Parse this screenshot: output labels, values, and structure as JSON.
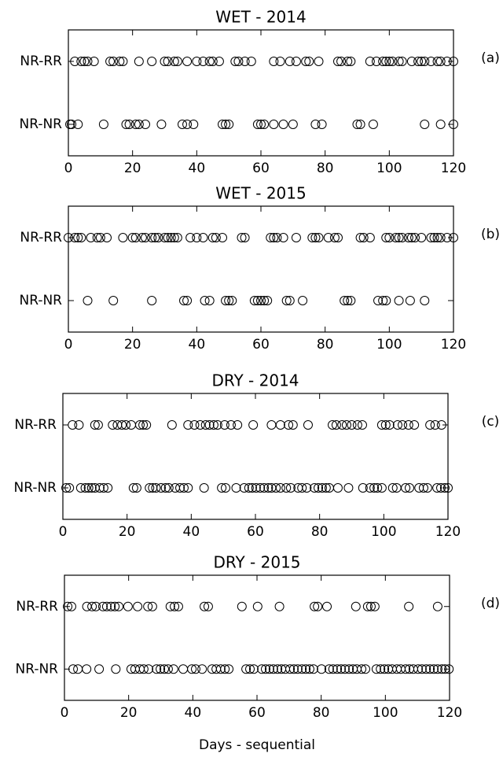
{
  "chart_data": [
    {
      "type": "strip",
      "title": "WET - 2014",
      "panel_label": "(a)",
      "xlim": [
        0,
        120
      ],
      "xticks": [
        0,
        20,
        40,
        60,
        80,
        100,
        120
      ],
      "series": [
        {
          "name": "NR-RR",
          "color": "#000000",
          "values": [
            2,
            4,
            5,
            6,
            8,
            13,
            14,
            16,
            17,
            22,
            26,
            30,
            31,
            33,
            34,
            37,
            40,
            42,
            44,
            45,
            47,
            52,
            53,
            55,
            57,
            64,
            66,
            69,
            71,
            74,
            75,
            78,
            84,
            85,
            87,
            88,
            94,
            96,
            98,
            99,
            100,
            101,
            103,
            104,
            107,
            109,
            110,
            111,
            113,
            115,
            116,
            118,
            120
          ]
        },
        {
          "name": "NR-NR",
          "color": "#000000",
          "values": [
            0.5,
            1,
            3,
            11,
            18,
            19,
            21,
            22,
            24,
            29,
            35.5,
            37,
            39,
            48,
            49,
            50,
            59,
            60,
            61,
            64,
            67,
            70,
            77,
            79,
            90,
            91,
            95,
            111,
            116,
            120
          ]
        }
      ]
    },
    {
      "type": "strip",
      "title": "WET - 2015",
      "panel_label": "(b)",
      "xlim": [
        0,
        120
      ],
      "xticks": [
        0,
        20,
        40,
        60,
        80,
        100,
        120
      ],
      "series": [
        {
          "name": "NR-RR",
          "color": "#000000",
          "values": [
            0,
            2,
            3,
            4,
            7,
            9,
            10,
            12,
            17,
            20,
            21,
            23,
            24,
            26,
            27,
            28,
            30,
            31,
            32,
            33,
            34,
            38,
            40,
            42,
            45,
            46,
            48,
            54,
            55,
            63,
            64,
            65,
            67,
            71,
            76,
            77,
            78,
            81,
            83,
            84,
            91,
            92,
            94,
            99,
            100,
            102,
            103,
            104,
            106,
            107,
            108,
            110,
            113,
            114,
            115,
            116,
            118,
            120
          ]
        },
        {
          "name": "NR-NR",
          "color": "#000000",
          "values": [
            6,
            14,
            26,
            36,
            37,
            42.5,
            44,
            49,
            50,
            51,
            58,
            59,
            60,
            61,
            62,
            68,
            69,
            73,
            86,
            87,
            88,
            96.5,
            98,
            99,
            103,
            106.5,
            111
          ]
        }
      ]
    },
    {
      "type": "strip",
      "title": "DRY - 2014",
      "panel_label": "(c)",
      "xlim": [
        0,
        120
      ],
      "xticks": [
        0,
        20,
        40,
        60,
        80,
        100,
        120
      ],
      "series": [
        {
          "name": "NR-RR",
          "color": "#000000",
          "values": [
            3,
            5,
            10,
            11,
            15.5,
            17,
            18.4,
            19.6,
            21.3,
            24,
            25,
            26,
            34,
            39,
            41,
            42.8,
            44.5,
            45.7,
            47,
            48.2,
            50.4,
            52.4,
            54.4,
            59.3,
            65,
            67.8,
            70.3,
            71.7,
            76.4,
            84,
            85.2,
            87,
            88.4,
            90,
            91.8,
            93.3,
            99.4,
            100.6,
            101.8,
            104.3,
            105.8,
            107.7,
            109.5,
            114.4,
            116,
            118
          ]
        },
        {
          "name": "NR-NR",
          "color": "#000000",
          "values": [
            1,
            2,
            5.6,
            7,
            8,
            9,
            10,
            11.5,
            12.7,
            14,
            22,
            23,
            27,
            28,
            29,
            30.6,
            32,
            33,
            35,
            36.5,
            37.7,
            39,
            44,
            49.5,
            50.7,
            54,
            56.5,
            58,
            59,
            60.2,
            61.5,
            62.7,
            64,
            65,
            66.4,
            67.8,
            69.6,
            71,
            73.3,
            74.5,
            76,
            78.4,
            79.6,
            80.8,
            82,
            83,
            85.7,
            89,
            93.5,
            95.7,
            97,
            98,
            99.4,
            102.8,
            104,
            106.8,
            108,
            111,
            112.4,
            113.6,
            116.6,
            117.8,
            119,
            120
          ]
        }
      ]
    },
    {
      "type": "strip",
      "title": "DRY - 2015",
      "panel_label": "(d)",
      "xlabel": "Days - sequential",
      "xlim": [
        0,
        120
      ],
      "xticks": [
        0,
        20,
        40,
        60,
        80,
        100,
        120
      ],
      "series": [
        {
          "name": "NR-RR",
          "color": "#000000",
          "values": [
            1,
            2.2,
            7,
            8.6,
            9.8,
            12,
            13.2,
            14.5,
            15.7,
            16.9,
            19.8,
            22.8,
            26,
            27.4,
            33,
            34.3,
            35.5,
            43.6,
            44.8,
            55.3,
            60.2,
            67,
            77.9,
            78.9,
            81.8,
            90.8,
            94.5,
            95.5,
            96.7,
            107.3,
            116.3
          ]
        },
        {
          "name": "NR-NR",
          "color": "#000000",
          "values": [
            2.7,
            4.2,
            6.9,
            10.8,
            16,
            20.8,
            22,
            23.5,
            24.7,
            26.2,
            28.7,
            29.9,
            31.1,
            32.3,
            34,
            37,
            39.7,
            40.9,
            42.9,
            46,
            47.3,
            48.7,
            50,
            51.2,
            56.6,
            57.8,
            59,
            61.5,
            62.7,
            63.9,
            65.1,
            66.4,
            67.6,
            68.8,
            70.3,
            71.5,
            72.7,
            74,
            75.2,
            76.4,
            77.6,
            80.1,
            82.5,
            83.7,
            85,
            86.2,
            87.4,
            88.7,
            89.9,
            91.1,
            92.6,
            93.8,
            97.2,
            98.5,
            99.7,
            100.9,
            102.1,
            103.6,
            104.8,
            106.3,
            107.5,
            108.7,
            110.2,
            111.4,
            112.7,
            113.9,
            115.1,
            116.3,
            117.6,
            118.6,
            119.8
          ]
        }
      ]
    }
  ]
}
